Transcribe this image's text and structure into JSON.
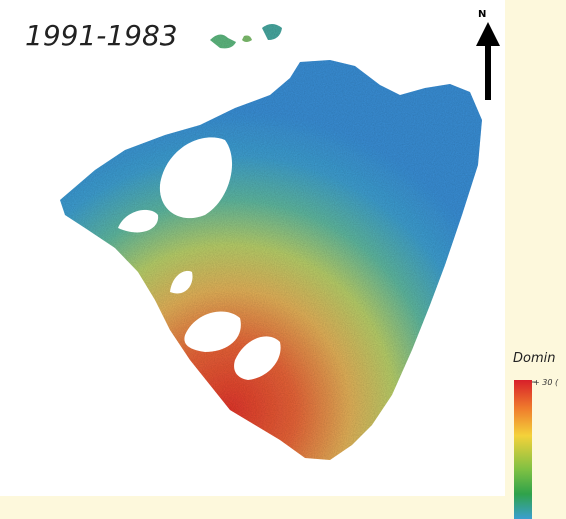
{
  "title": "1991-1983",
  "north_label": "N",
  "legend": {
    "title": "Domin",
    "top_label": "+ 30 ("
  }
}
